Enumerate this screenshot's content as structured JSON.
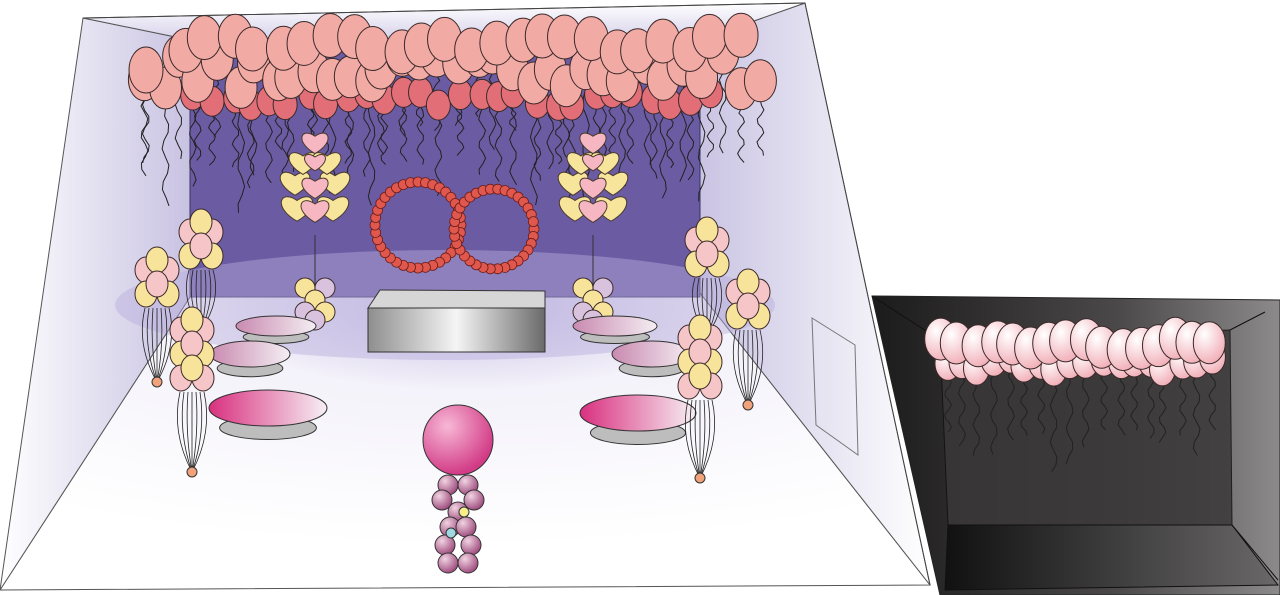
{
  "scene": {
    "colors": {
      "back_wall": "#6b5ba3",
      "side_wall_edge": "#e4e1f1",
      "balloon_pink": "#f2aaa5",
      "balloon_rose": "#e26f78",
      "balloon_yellow": "#f7e39a",
      "balloon_light_pink": "#f6c5c8",
      "heart_yellow": "#f7e59c",
      "heart_pink": "#f6b7c3",
      "ring_bead": "#e0574d",
      "table_magenta": "#d9307f",
      "column_balloon": "#c26a9b",
      "dark_room": "#2b2929"
    },
    "objects": [
      {
        "name": "ceiling-balloon-cluster",
        "icon": "balloon-icon"
      },
      {
        "name": "heart-balloon-column-left",
        "icon": "heart-icon"
      },
      {
        "name": "heart-balloon-column-right",
        "icon": "heart-icon"
      },
      {
        "name": "interlocked-rings",
        "icon": "ring-icon"
      },
      {
        "name": "low-platform",
        "icon": "box-icon"
      },
      {
        "name": "round-tables",
        "icon": "table-icon"
      },
      {
        "name": "balloon-column-center",
        "icon": "balloon-icon"
      },
      {
        "name": "side-room-ceiling-balloons",
        "icon": "balloon-icon"
      }
    ]
  }
}
